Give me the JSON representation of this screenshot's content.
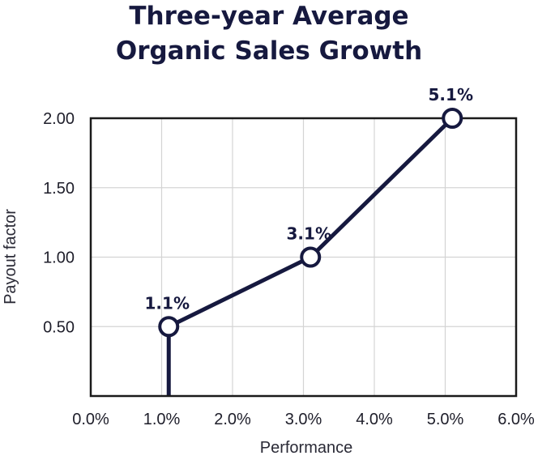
{
  "chart_data": {
    "type": "line",
    "title_lines": [
      "Three-year Average",
      "Organic Sales Growth"
    ],
    "xlabel": "Performance",
    "ylabel": "Payout factor",
    "xlim": [
      0.0,
      6.0
    ],
    "ylim": [
      0.0,
      2.0
    ],
    "x_ticks": [
      "0.0%",
      "1.0%",
      "2.0%",
      "3.0%",
      "4.0%",
      "5.0%",
      "6.0%"
    ],
    "y_ticks": [
      "0.50",
      "1.00",
      "1.50",
      "2.00"
    ],
    "y_tick_values": [
      0.5,
      1.0,
      1.5,
      2.0
    ],
    "x_tick_values": [
      0,
      1,
      2,
      3,
      4,
      5,
      6
    ],
    "grid": true,
    "series": [
      {
        "x": [
          1.1,
          1.1,
          3.1,
          5.1
        ],
        "y": [
          0.0,
          0.5,
          1.0,
          2.0
        ],
        "markers": [
          false,
          true,
          true,
          true
        ]
      }
    ],
    "data_labels": [
      {
        "x": 1.1,
        "y": 0.5,
        "text": "1.1%"
      },
      {
        "x": 3.1,
        "y": 1.0,
        "text": "3.1%"
      },
      {
        "x": 5.1,
        "y": 2.0,
        "text": "5.1%"
      }
    ],
    "colors": {
      "line": "#16193f",
      "frame": "#1a1a1a",
      "grid": "#d4d4d4",
      "marker_fill": "#ffffff"
    }
  }
}
